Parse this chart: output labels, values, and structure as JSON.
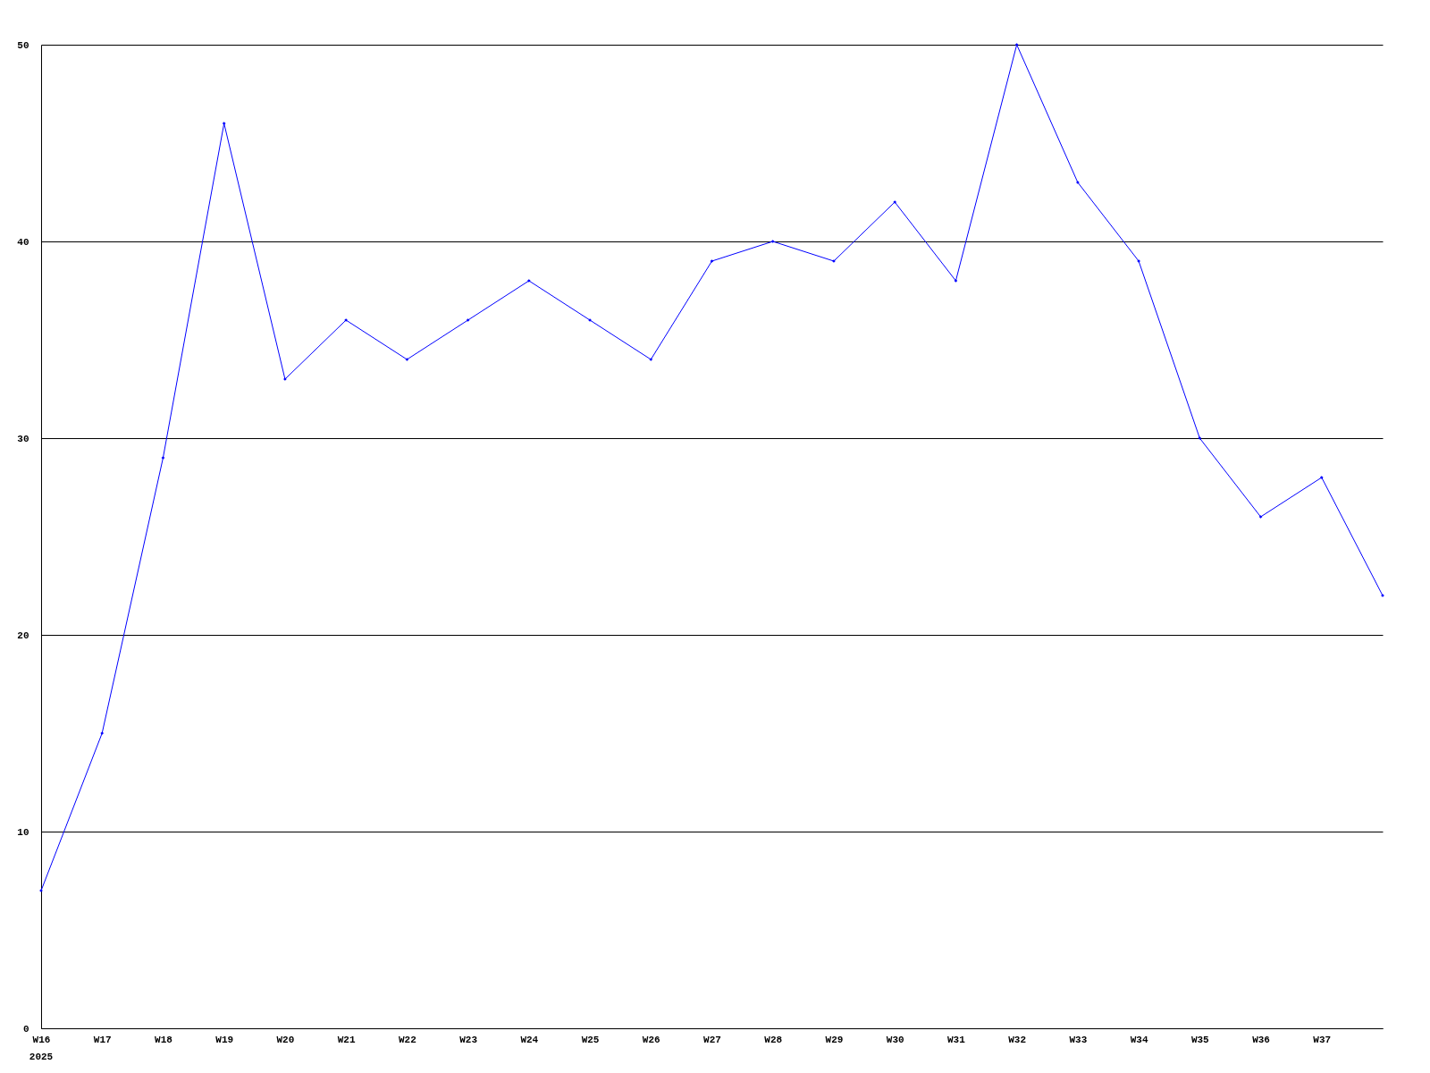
{
  "chart_data": {
    "type": "line",
    "categories": [
      "W16",
      "W17",
      "W18",
      "W19",
      "W20",
      "W21",
      "W22",
      "W23",
      "W24",
      "W25",
      "W26",
      "W27",
      "W28",
      "W29",
      "W30",
      "W31",
      "W32",
      "W33",
      "W34",
      "W35",
      "W36",
      "W37",
      null
    ],
    "series": [
      {
        "color": "#0000ff",
        "values": [
          7,
          15,
          29,
          46,
          33,
          36,
          34,
          36,
          38,
          36,
          34,
          39,
          40,
          39,
          42,
          38,
          50,
          43,
          39,
          30,
          26,
          28,
          22
        ]
      }
    ],
    "ylim": [
      0,
      50
    ],
    "yticks": [
      0,
      10,
      20,
      30,
      40,
      50
    ],
    "grid": "y",
    "marker": "diamond",
    "line_style": "solid",
    "annotations": [
      "2025"
    ]
  }
}
